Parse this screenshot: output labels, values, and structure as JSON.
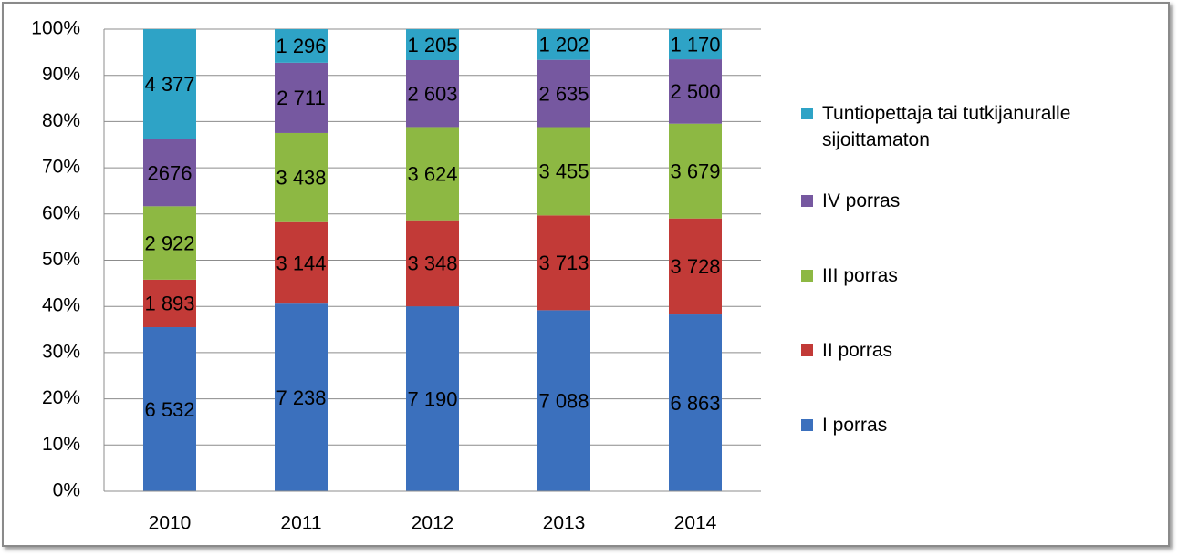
{
  "chart_data": {
    "type": "bar",
    "stacking": "percent",
    "categories": [
      "2010",
      "2011",
      "2012",
      "2013",
      "2014"
    ],
    "series": [
      {
        "name": "I porras",
        "color": "#3b70bd",
        "values": [
          6532,
          7238,
          7190,
          7088,
          6863
        ],
        "value_labels": [
          "6 532",
          "7 238",
          "7 190",
          "7 088",
          "6 863"
        ]
      },
      {
        "name": "II porras",
        "color": "#c23a37",
        "values": [
          1893,
          3144,
          3348,
          3713,
          3728
        ],
        "value_labels": [
          "1 893",
          "3 144",
          "3 348",
          "3 713",
          "3 728"
        ]
      },
      {
        "name": "III porras",
        "color": "#8db843",
        "values": [
          2922,
          3438,
          3624,
          3455,
          3679
        ],
        "value_labels": [
          "2 922",
          "3 438",
          "3 624",
          "3 455",
          "3 679"
        ]
      },
      {
        "name": "IV porras",
        "color": "#7658a0",
        "values": [
          2676,
          2711,
          2603,
          2635,
          2500
        ],
        "value_labels": [
          "2676",
          "2 711",
          "2 603",
          "2 635",
          "2 500"
        ]
      },
      {
        "name": "Tuntiopettaja tai tutkijanuralle sijoittamaton",
        "color": "#2ea3c6",
        "values": [
          4377,
          1296,
          1205,
          1202,
          1170
        ],
        "value_labels": [
          "4 377",
          "1 296",
          "1 205",
          "1 202",
          "1 170"
        ]
      }
    ],
    "ylim": [
      0,
      100
    ],
    "yticks": [
      {
        "value": 0,
        "label": "0%"
      },
      {
        "value": 10,
        "label": "10%"
      },
      {
        "value": 20,
        "label": "20%"
      },
      {
        "value": 30,
        "label": "30%"
      },
      {
        "value": 40,
        "label": "40%"
      },
      {
        "value": 50,
        "label": "50%"
      },
      {
        "value": 60,
        "label": "60%"
      },
      {
        "value": 70,
        "label": "70%"
      },
      {
        "value": 80,
        "label": "80%"
      },
      {
        "value": 90,
        "label": "90%"
      },
      {
        "value": 100,
        "label": "100%"
      }
    ],
    "grid": true,
    "legend": "right"
  }
}
